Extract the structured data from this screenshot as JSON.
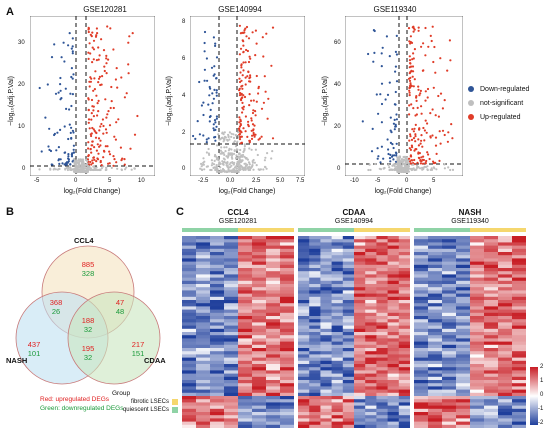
{
  "panels": {
    "a": "A",
    "b": "B",
    "c": "C"
  },
  "volcano": {
    "ylabel": "−log₁₀(adj.P.Val)",
    "xlabel": "log₂(Fold Change)",
    "plots": [
      {
        "title": "GSE120281",
        "xticks": [
          "-5",
          "0",
          "5",
          "10"
        ],
        "yticks": [
          "0",
          "10",
          "20",
          "30"
        ]
      },
      {
        "title": "GSE140994",
        "xticks": [
          "-2.5",
          "0.0",
          "2.5",
          "5.0",
          "7.5"
        ],
        "yticks": [
          "0",
          "2",
          "4",
          "6",
          "8"
        ]
      },
      {
        "title": "GSE119340",
        "xticks": [
          "-10",
          "-5",
          "0",
          "5"
        ],
        "yticks": [
          "0",
          "20",
          "40",
          "60"
        ]
      }
    ],
    "legend": [
      {
        "label": "Down-regulated",
        "color": "#2f5597"
      },
      {
        "label": "not-significant",
        "color": "#bfbfbf"
      },
      {
        "label": "Up-regulated",
        "color": "#e03c28"
      }
    ]
  },
  "venn": {
    "sets": {
      "ccl4": "CCL4",
      "nash": "NASH",
      "cdaa": "CDAA"
    },
    "regions": [
      {
        "up": "885",
        "down": "328"
      },
      {
        "up": "368",
        "down": "26"
      },
      {
        "up": "47",
        "down": "48"
      },
      {
        "up": "188",
        "down": "32"
      },
      {
        "up": "437",
        "down": "101"
      },
      {
        "up": "195",
        "down": "32"
      },
      {
        "up": "217",
        "down": "151"
      }
    ],
    "note_red": "Red: upregulated DEGs",
    "note_green": "Green: downregulated DEGs"
  },
  "heatmap": {
    "blocks": [
      {
        "title": "CCL4",
        "sub": "GSE120281"
      },
      {
        "title": "CDAA",
        "sub": "GSE140994"
      },
      {
        "title": "NASH",
        "sub": "GSE119340"
      }
    ],
    "group_title": "Group",
    "groups": [
      {
        "label": "fibrotic LSECs",
        "color": "#f5d76e"
      },
      {
        "label": "quiescent LSECs",
        "color": "#8fd3a6"
      }
    ],
    "scale_ticks": [
      "2",
      "1",
      "0",
      "-1",
      "-2"
    ]
  },
  "colors": {
    "up": "#e03c28",
    "down": "#2f5597",
    "ns": "#bfbfbf",
    "red_note": "#e02020",
    "green_note": "#1a9a3a"
  }
}
